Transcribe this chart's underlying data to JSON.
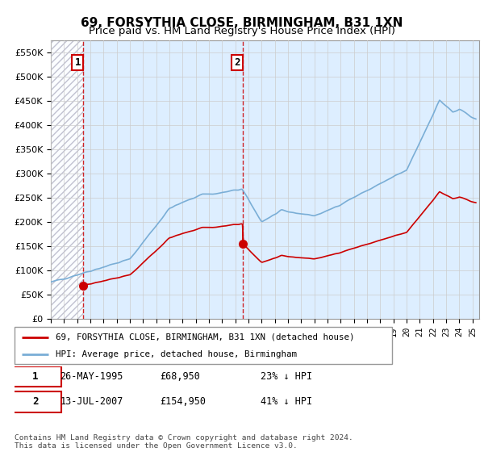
{
  "title": "69, FORSYTHIA CLOSE, BIRMINGHAM, B31 1XN",
  "subtitle": "Price paid vs. HM Land Registry's House Price Index (HPI)",
  "ylim": [
    0,
    575000
  ],
  "yticks": [
    0,
    50000,
    100000,
    150000,
    200000,
    250000,
    300000,
    350000,
    400000,
    450000,
    500000,
    550000
  ],
  "ytick_labels": [
    "£0",
    "£50K",
    "£100K",
    "£150K",
    "£200K",
    "£250K",
    "£300K",
    "£350K",
    "£400K",
    "£450K",
    "£500K",
    "£550K"
  ],
  "sale1_x": 1995.42,
  "sale1_price": 68950,
  "sale2_x": 2007.54,
  "sale2_price": 154950,
  "hpi_color": "#7aaed6",
  "property_color": "#cc0000",
  "bg_plot_color": "#ddeeff",
  "hatch_color": "#bbbbcc",
  "grid_color": "#cccccc",
  "legend_line1": "69, FORSYTHIA CLOSE, BIRMINGHAM, B31 1XN (detached house)",
  "legend_line2": "HPI: Average price, detached house, Birmingham",
  "table_row1": [
    "1",
    "26-MAY-1995",
    "£68,950",
    "23% ↓ HPI"
  ],
  "table_row2": [
    "2",
    "13-JUL-2007",
    "£154,950",
    "41% ↓ HPI"
  ],
  "footer": "Contains HM Land Registry data © Crown copyright and database right 2024.\nThis data is licensed under the Open Government Licence v3.0.",
  "xmin": 1993.0,
  "xmax": 2025.5
}
